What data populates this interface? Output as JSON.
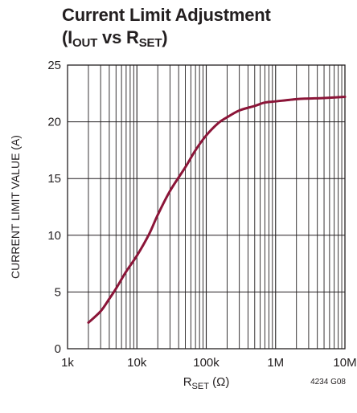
{
  "header": {
    "title_line1": "Current Limit Adjustment",
    "title_line2_prefix": "(I",
    "title_line2_sub1": "OUT",
    "title_line2_mid": " vs R",
    "title_line2_sub2": "SET",
    "title_line2_suffix": ")"
  },
  "chart_data": {
    "type": "line",
    "title": "Current Limit Adjustment (IOUT vs RSET)",
    "xlabel": "RSET (Ω)",
    "xlabel_main": "R",
    "xlabel_sub": "SET",
    "xlabel_unit": " (Ω)",
    "ylabel": "CURRENT LIMIT VALUE (A)",
    "xscale": "log",
    "xlim": [
      1000,
      10000000
    ],
    "ylim": [
      0,
      25
    ],
    "grid": true,
    "x_ticks": [
      {
        "value": 1000,
        "label": "1k"
      },
      {
        "value": 10000,
        "label": "10k"
      },
      {
        "value": 100000,
        "label": "100k"
      },
      {
        "value": 1000000,
        "label": "1M"
      },
      {
        "value": 10000000,
        "label": "10M"
      }
    ],
    "y_ticks": [
      {
        "value": 0,
        "label": "0"
      },
      {
        "value": 5,
        "label": "5"
      },
      {
        "value": 10,
        "label": "10"
      },
      {
        "value": 15,
        "label": "15"
      },
      {
        "value": 20,
        "label": "20"
      },
      {
        "value": 25,
        "label": "25"
      }
    ],
    "series": [
      {
        "color": "#8b1538",
        "points": [
          [
            2000,
            2.3
          ],
          [
            3000,
            3.3
          ],
          [
            4000,
            4.4
          ],
          [
            5000,
            5.3
          ],
          [
            7000,
            6.8
          ],
          [
            10000,
            8.2
          ],
          [
            15000,
            10.1
          ],
          [
            20000,
            11.8
          ],
          [
            30000,
            13.9
          ],
          [
            50000,
            16.0
          ],
          [
            70000,
            17.5
          ],
          [
            100000,
            18.8
          ],
          [
            150000,
            19.9
          ],
          [
            200000,
            20.4
          ],
          [
            300000,
            21.0
          ],
          [
            500000,
            21.4
          ],
          [
            700000,
            21.7
          ],
          [
            1000000,
            21.8
          ],
          [
            2000000,
            22.0
          ],
          [
            3000000,
            22.05
          ],
          [
            5000000,
            22.1
          ],
          [
            10000000,
            22.2
          ]
        ]
      }
    ]
  },
  "figure_id": "4234 G08"
}
